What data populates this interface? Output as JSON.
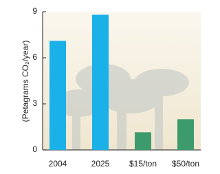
{
  "chart_data": {
    "type": "bar",
    "y_label": "(Petagrams CO₂/year)",
    "categories": [
      "2004",
      "2025",
      "$15/ton",
      "$50/ton"
    ],
    "values": [
      7.1,
      8.8,
      1.15,
      2.0
    ],
    "colors": [
      "#1ab0e8",
      "#1ab0e8",
      "#3c9a6c",
      "#3c9a6c"
    ],
    "ylim": [
      0,
      9
    ],
    "yticks": [
      0,
      3,
      6,
      9
    ]
  }
}
